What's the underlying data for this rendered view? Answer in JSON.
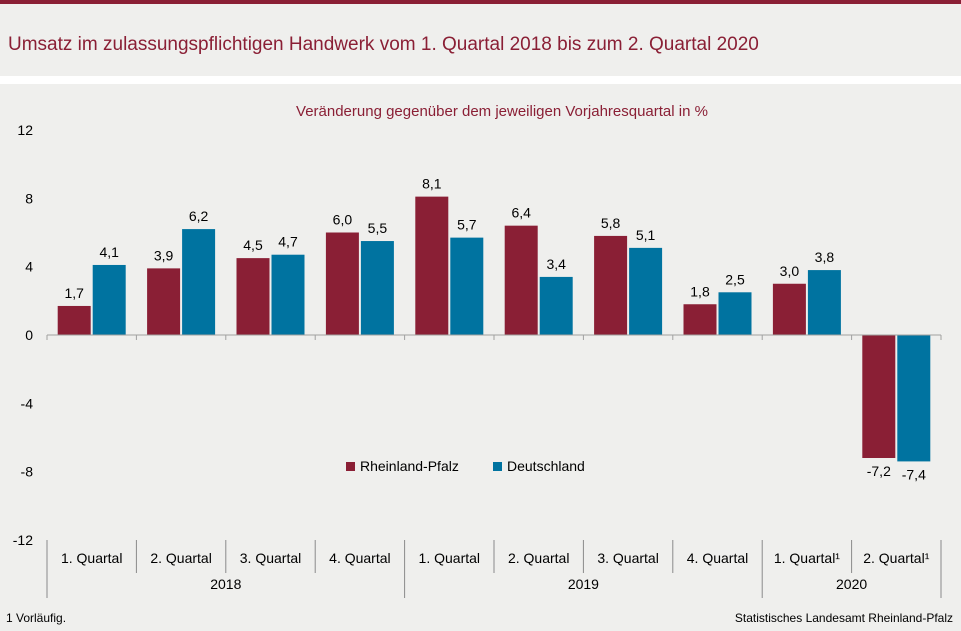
{
  "title": "Umsatz im zulassungspflichtigen Handwerk vom 1. Quartal 2018 bis zum 2. Quartal 2020",
  "footnote": "1 Vorläufig.",
  "source": "Statistisches Landesamt Rheinland-Pfalz",
  "chart_data": {
    "type": "bar",
    "subtitle": "Veränderung gegenüber dem jeweiligen Vorjahresquartal in %",
    "categories": [
      "1. Quartal",
      "2. Quartal",
      "3. Quartal",
      "4. Quartal",
      "1. Quartal",
      "2. Quartal",
      "3. Quartal",
      "4. Quartal",
      "1. Quartal¹",
      "2. Quartal¹"
    ],
    "year_groups": [
      {
        "label": "2018",
        "start": 0,
        "end": 3
      },
      {
        "label": "2019",
        "start": 4,
        "end": 7
      },
      {
        "label": "2020",
        "start": 8,
        "end": 9
      }
    ],
    "series": [
      {
        "name": "Rheinland-Pfalz",
        "color": "#8a1f35",
        "values": [
          1.7,
          3.9,
          4.5,
          6.0,
          8.1,
          6.4,
          5.8,
          1.8,
          3.0,
          -7.2
        ],
        "labels": [
          "1,7",
          "3,9",
          "4,5",
          "6,0",
          "8,1",
          "6,4",
          "5,8",
          "1,8",
          "3,0",
          "-7,2"
        ]
      },
      {
        "name": "Deutschland",
        "color": "#0073a0",
        "values": [
          4.1,
          6.2,
          4.7,
          5.5,
          5.7,
          3.4,
          5.1,
          2.5,
          3.8,
          -7.4
        ],
        "labels": [
          "4,1",
          "6,2",
          "4,7",
          "5,5",
          "5,7",
          "3,4",
          "5,1",
          "2,5",
          "3,8",
          "-7,4"
        ]
      }
    ],
    "ylim": [
      -12,
      12
    ],
    "yticks": [
      -12,
      -8,
      -4,
      0,
      4,
      8,
      12
    ],
    "ytick_labels": [
      "-12",
      "-8",
      "-4",
      "0",
      "4",
      "8",
      "12"
    ],
    "grid": false,
    "legend": "center"
  }
}
